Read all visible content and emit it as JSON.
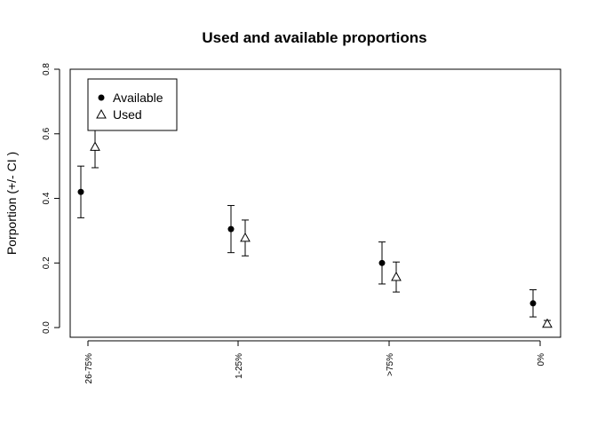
{
  "chart_data": {
    "type": "scatter",
    "title": "Used and available proportions",
    "xlabel": "",
    "ylabel": "Porportion (+/- CI )",
    "categories": [
      "26-75%",
      "1-25%",
      ">75%",
      "0%"
    ],
    "ylim": [
      -0.03,
      0.8
    ],
    "yticks": [
      0.0,
      0.2,
      0.4,
      0.6,
      0.8
    ],
    "ytick_labels": [
      "0.0",
      "0.2",
      "0.4",
      "0.6",
      "0.8"
    ],
    "grid": false,
    "legend": {
      "placement": "top-left",
      "entries": [
        {
          "label": "Available",
          "marker": "filled-circle"
        },
        {
          "label": "Used",
          "marker": "open-triangle"
        }
      ]
    },
    "series": [
      {
        "name": "Available",
        "marker": "filled-circle",
        "values": [
          0.42,
          0.305,
          0.2,
          0.075
        ],
        "ci_low": [
          0.34,
          0.232,
          0.135,
          0.033
        ],
        "ci_high": [
          0.5,
          0.378,
          0.265,
          0.117
        ]
      },
      {
        "name": "Used",
        "marker": "open-triangle",
        "values": [
          0.56,
          0.278,
          0.157,
          0.012
        ],
        "ci_low": [
          0.495,
          0.222,
          0.11,
          0.003
        ],
        "ci_high": [
          0.625,
          0.333,
          0.203,
          0.022
        ]
      }
    ]
  }
}
